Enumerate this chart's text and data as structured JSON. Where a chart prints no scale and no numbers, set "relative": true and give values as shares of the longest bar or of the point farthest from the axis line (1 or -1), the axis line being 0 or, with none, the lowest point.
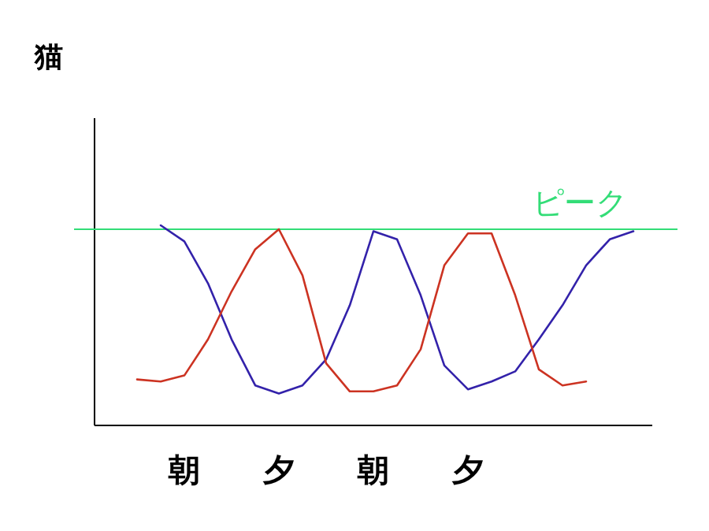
{
  "chart_data": {
    "type": "line",
    "title": "猫",
    "relative": true,
    "categories": [
      null,
      null,
      "朝",
      null,
      null,
      null,
      "夕",
      null,
      null,
      null,
      "朝",
      null,
      null,
      null,
      "夕",
      null,
      null,
      null,
      null,
      null,
      null,
      null
    ],
    "series": [
      {
        "color": "#3322aa",
        "values": [
          null,
          1,
          0.92,
          0.71,
          0.43,
          0.2,
          0.16,
          0.2,
          0.33,
          0.6,
          0.97,
          0.93,
          0.65,
          0.3,
          0.18,
          0.22,
          0.27,
          0.43,
          0.6,
          0.8,
          0.93,
          0.97
        ]
      },
      {
        "color": "#cc3322",
        "values": [
          0.23,
          0.22,
          0.25,
          0.43,
          0.67,
          0.88,
          0.98,
          0.75,
          0.31,
          0.17,
          0.17,
          0.2,
          0.38,
          0.8,
          0.96,
          0.96,
          0.65,
          0.28,
          0.2,
          0.22,
          null,
          null
        ]
      }
    ],
    "ref_lines": [
      {
        "axis": "y",
        "value": 0.98,
        "label": "ピーク",
        "color": "#33dd77"
      }
    ]
  }
}
